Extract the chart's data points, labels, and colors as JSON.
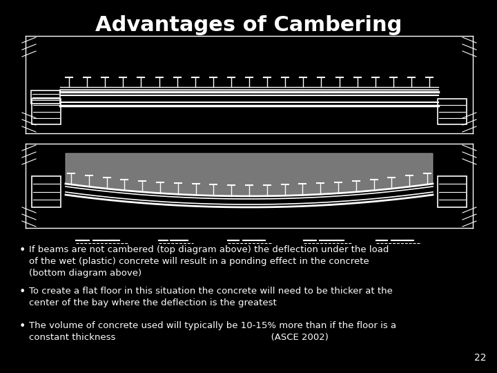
{
  "title": "Advantages of Cambering",
  "background_color": "#000000",
  "title_color": "#ffffff",
  "title_fontsize": 22,
  "title_fontweight": "bold",
  "line_color": "#ffffff",
  "concrete_color": "#808080",
  "bullet_points": [
    "If beams are not cambered (top diagram above) the deflection under the load\nof the wet (plastic) concrete will result in a ponding effect in the concrete\n(bottom diagram above)",
    "To create a flat floor in this situation the concrete will need to be thicker at the\ncenter of the bay where the deflection is the greatest",
    "The volume of concrete used will typically be 10-15% more than if the floor is a\nconstant thickness                                                     (ASCE 2002)"
  ],
  "bullet_fontsize": 9.5,
  "page_number": "22",
  "fig_width": 7.2,
  "fig_height": 5.4,
  "fig_dpi": 100
}
